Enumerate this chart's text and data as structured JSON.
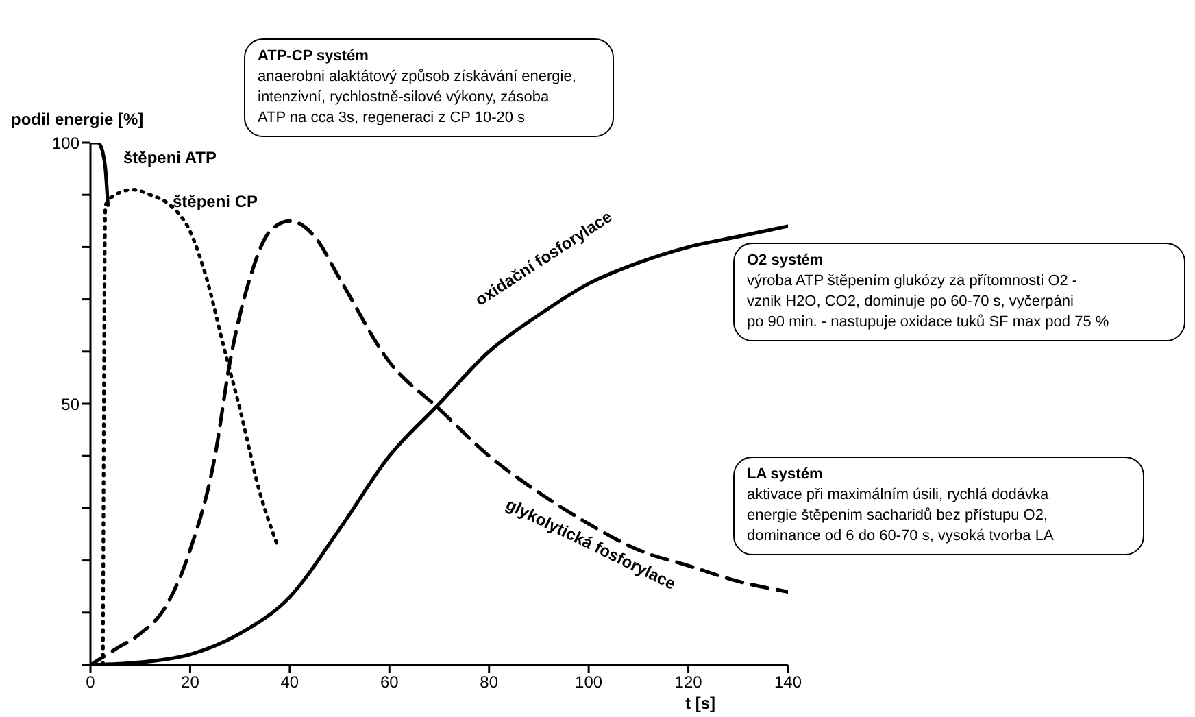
{
  "chart_data": {
    "type": "line",
    "xlabel": "t [s]",
    "ylabel": "podil energie [%]",
    "xlim": [
      0,
      140
    ],
    "xticks": [
      0,
      20,
      40,
      60,
      80,
      100,
      120,
      140
    ],
    "ylim": [
      0,
      100
    ],
    "yticks": [
      {
        "value": 0,
        "label": null
      },
      {
        "value": 10,
        "label": null
      },
      {
        "value": 20,
        "label": null
      },
      {
        "value": 30,
        "label": null
      },
      {
        "value": 40,
        "label": null
      },
      50,
      {
        "value": 60,
        "label": null
      },
      {
        "value": 70,
        "label": null
      },
      {
        "value": 80,
        "label": null
      },
      {
        "value": 90,
        "label": null
      },
      100
    ],
    "grid": false,
    "legend": false,
    "marker": "none",
    "series": [
      {
        "name": "štěpeni ATP",
        "color": "#000000",
        "line_style": "solid",
        "x": [
          0,
          1.5,
          2.5,
          3,
          3.5
        ],
        "values": [
          100,
          100,
          98,
          95,
          88
        ]
      },
      {
        "name": "štěpeni CP",
        "color": "#000000",
        "line_style": "dotted",
        "x": [
          2.5,
          3,
          5,
          8.5,
          12,
          16,
          20,
          23,
          27,
          30,
          34,
          37.5
        ],
        "values": [
          0,
          88,
          90,
          91,
          90,
          88,
          83,
          75,
          60,
          49,
          33,
          23
        ]
      },
      {
        "name": "glykolytická fosforylace",
        "color": "#000000",
        "line_style": "dashed",
        "x": [
          0,
          5,
          10,
          15,
          20,
          25,
          28,
          32,
          36,
          40,
          45,
          50,
          60,
          70,
          80,
          90,
          100,
          110,
          120,
          130,
          140
        ],
        "values": [
          0,
          3,
          6,
          11,
          22,
          40,
          58,
          74,
          83,
          85,
          82,
          74,
          58,
          49,
          40,
          33,
          27,
          22,
          19,
          16,
          14
        ]
      },
      {
        "name": "oxidační fosforylace",
        "color": "#000000",
        "line_style": "solid",
        "x": [
          0,
          10,
          20,
          30,
          40,
          50,
          60,
          70,
          80,
          90,
          100,
          110,
          120,
          130,
          140
        ],
        "values": [
          0,
          0.5,
          2,
          6,
          13,
          26,
          40,
          50,
          60,
          67,
          73,
          77,
          80,
          82,
          84
        ]
      }
    ],
    "annotations": [
      "ATP-CP systém\nanaerobni alaktátový způsob získávání energie,\nintenzivní, rychlostně-silové výkony, zásoba\nATP na cca 3s, regeneraci z CP 10-20 s",
      "O2 systém\nvýroba ATP štěpením glukózy za přítomnosti O2 -\nvznik H2O, CO2, dominuje po 60-70 s, vyčerpáni\npo 90 min. - nastupuje oxidace tuků SF max pod 75 %",
      "LA systém\naktivace při maximálním úsili, rychlá dodávka\nenergie štěpenim sacharidů bez přístupu O2,\ndominance od 6 do 60-70 s, vysoká tvorba LA"
    ]
  }
}
